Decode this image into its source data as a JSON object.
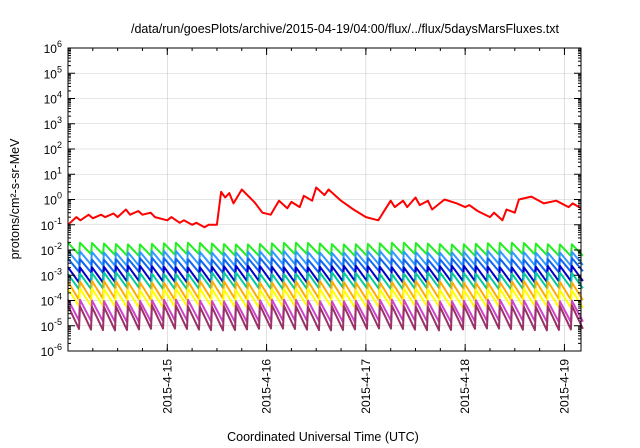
{
  "chart_data": {
    "type": "line",
    "title": "/data/run/goesPlots/archive/2015-04-19/04:00/flux/../flux/5daysMarsFluxes.txt",
    "xlabel": "Coordinated Universal Time (UTC)",
    "ylabel": "protons/cm²-s-sr-MeV",
    "y_scale": "log",
    "ylim": [
      1e-06,
      1000000.0
    ],
    "y_ticks": [
      {
        "value": 1e-06,
        "mant": "10",
        "exp": "-6"
      },
      {
        "value": 1e-05,
        "mant": "10",
        "exp": "-5"
      },
      {
        "value": 0.0001,
        "mant": "10",
        "exp": "-4"
      },
      {
        "value": 0.001,
        "mant": "10",
        "exp": "-3"
      },
      {
        "value": 0.01,
        "mant": "10",
        "exp": "-2"
      },
      {
        "value": 0.1,
        "mant": "10",
        "exp": "-1"
      },
      {
        "value": 1.0,
        "mant": "10",
        "exp": "0"
      },
      {
        "value": 10.0,
        "mant": "10",
        "exp": "1"
      },
      {
        "value": 100.0,
        "mant": "10",
        "exp": "2"
      },
      {
        "value": 1000.0,
        "mant": "10",
        "exp": "3"
      },
      {
        "value": 10000.0,
        "mant": "10",
        "exp": "4"
      },
      {
        "value": 100000.0,
        "mant": "10",
        "exp": "5"
      },
      {
        "value": 1000000.0,
        "mant": "10",
        "exp": "6"
      }
    ],
    "xlim": [
      "2015-04-14 00:00",
      "2015-04-19 04:00"
    ],
    "x_ticks": [
      "2015-4-15",
      "2015-4-16",
      "2015-4-17",
      "2015-4-18",
      "2015-4-19"
    ],
    "x_tick_dates": [
      "2015-04-15",
      "2015-04-16",
      "2015-04-17",
      "2015-04-18",
      "2015-04-19"
    ],
    "grid": true,
    "series": [
      {
        "color": "#ff0000",
        "x": [
          "2015-04-14 00:00",
          "2015-04-14 02:00",
          "2015-04-14 03:00",
          "2015-04-14 05:00",
          "2015-04-14 06:00",
          "2015-04-14 08:00",
          "2015-04-14 09:00",
          "2015-04-14 11:00",
          "2015-04-14 12:00",
          "2015-04-14 14:00",
          "2015-04-14 15:00",
          "2015-04-14 17:00",
          "2015-04-14 18:00",
          "2015-04-14 20:00",
          "2015-04-14 21:00",
          "2015-04-15 00:00",
          "2015-04-15 01:00",
          "2015-04-15 03:00",
          "2015-04-15 04:00",
          "2015-04-15 06:00",
          "2015-04-15 07:00",
          "2015-04-15 09:00",
          "2015-04-15 10:00",
          "2015-04-15 12:00",
          "2015-04-15 13:00",
          "2015-04-15 14:00",
          "2015-04-15 15:00",
          "2015-04-15 16:00",
          "2015-04-15 18:00",
          "2015-04-15 21:00",
          "2015-04-15 23:00",
          "2015-04-16 01:00",
          "2015-04-16 03:00",
          "2015-04-16 05:00",
          "2015-04-16 06:00",
          "2015-04-16 08:00",
          "2015-04-16 09:00",
          "2015-04-16 11:00",
          "2015-04-16 12:00",
          "2015-04-16 14:00",
          "2015-04-16 15:00",
          "2015-04-16 18:00",
          "2015-04-16 21:00",
          "2015-04-17 00:00",
          "2015-04-17 03:00",
          "2015-04-17 06:00",
          "2015-04-17 07:00",
          "2015-04-17 09:00",
          "2015-04-17 10:00",
          "2015-04-17 12:00",
          "2015-04-17 13:00",
          "2015-04-17 15:00",
          "2015-04-17 16:00",
          "2015-04-17 19:00",
          "2015-04-17 22:00",
          "2015-04-18 00:00",
          "2015-04-18 01:00",
          "2015-04-18 03:00",
          "2015-04-18 06:00",
          "2015-04-18 07:00",
          "2015-04-18 09:00",
          "2015-04-18 10:00",
          "2015-04-18 12:00",
          "2015-04-18 13:00",
          "2015-04-18 16:00",
          "2015-04-18 19:00",
          "2015-04-18 22:00",
          "2015-04-19 01:00",
          "2015-04-19 02:00",
          "2015-04-19 04:00"
        ],
        "y": [
          0.1,
          0.2,
          0.15,
          0.25,
          0.18,
          0.25,
          0.2,
          0.28,
          0.2,
          0.4,
          0.25,
          0.35,
          0.25,
          0.3,
          0.2,
          0.15,
          0.2,
          0.12,
          0.15,
          0.1,
          0.12,
          0.08,
          0.1,
          0.1,
          2.0,
          1.2,
          1.8,
          0.7,
          2.5,
          0.8,
          0.3,
          0.25,
          0.9,
          0.45,
          0.8,
          0.5,
          1.4,
          0.9,
          3.0,
          1.5,
          2.5,
          0.9,
          0.4,
          0.2,
          0.15,
          0.9,
          0.5,
          0.9,
          0.5,
          1.2,
          0.6,
          0.9,
          0.4,
          1.0,
          0.7,
          0.5,
          0.6,
          0.35,
          0.2,
          0.3,
          0.15,
          0.4,
          0.3,
          1.0,
          1.3,
          0.7,
          0.9,
          0.5,
          0.7,
          0.45
        ]
      },
      {
        "color": "#22ee22",
        "base": 0.018,
        "period_hours": 2.9,
        "drop": 0.35
      },
      {
        "color": "#3399ff",
        "base": 0.0085,
        "period_hours": 2.9,
        "drop": 0.3
      },
      {
        "color": "#1166ee",
        "base": 0.0045,
        "period_hours": 2.9,
        "drop": 0.3
      },
      {
        "color": "#0000cc",
        "base": 0.0022,
        "period_hours": 2.9,
        "drop": 0.25
      },
      {
        "color": "#00cc99",
        "base": 0.0012,
        "period_hours": 2.9,
        "drop": 0.25
      },
      {
        "color": "#ffaa00",
        "base": 0.00055,
        "period_hours": 2.9,
        "drop": 0.2
      },
      {
        "color": "#ffff00",
        "base": 0.00028,
        "period_hours": 2.9,
        "drop": 0.2
      },
      {
        "color": "#cc44cc",
        "base": 0.0001,
        "period_hours": 2.9,
        "drop": 0.15
      },
      {
        "color": "#993366",
        "base": 6e-05,
        "period_hours": 2.9,
        "drop": 0.12
      }
    ]
  }
}
